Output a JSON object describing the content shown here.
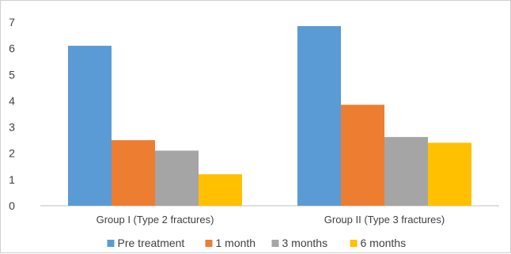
{
  "chart_data": {
    "type": "bar",
    "categories": [
      "Group I (Type 2 fractures)",
      "Group II (Type 3 fractures)"
    ],
    "series": [
      {
        "name": "Pre treatment",
        "values": [
          6.1,
          6.85
        ],
        "color": "#5b9bd5"
      },
      {
        "name": "1 month",
        "values": [
          2.5,
          3.85
        ],
        "color": "#ed7d31"
      },
      {
        "name": "3 months",
        "values": [
          2.1,
          2.62
        ],
        "color": "#a5a5a5"
      },
      {
        "name": "6 months",
        "values": [
          1.2,
          2.4
        ],
        "color": "#ffc000"
      }
    ],
    "title": "",
    "xlabel": "",
    "ylabel": "",
    "ylim": [
      0,
      7
    ],
    "yticks": [
      "0",
      "1",
      "2",
      "3",
      "4",
      "5",
      "6",
      "7"
    ],
    "grid": false,
    "legend_position": "bottom"
  }
}
